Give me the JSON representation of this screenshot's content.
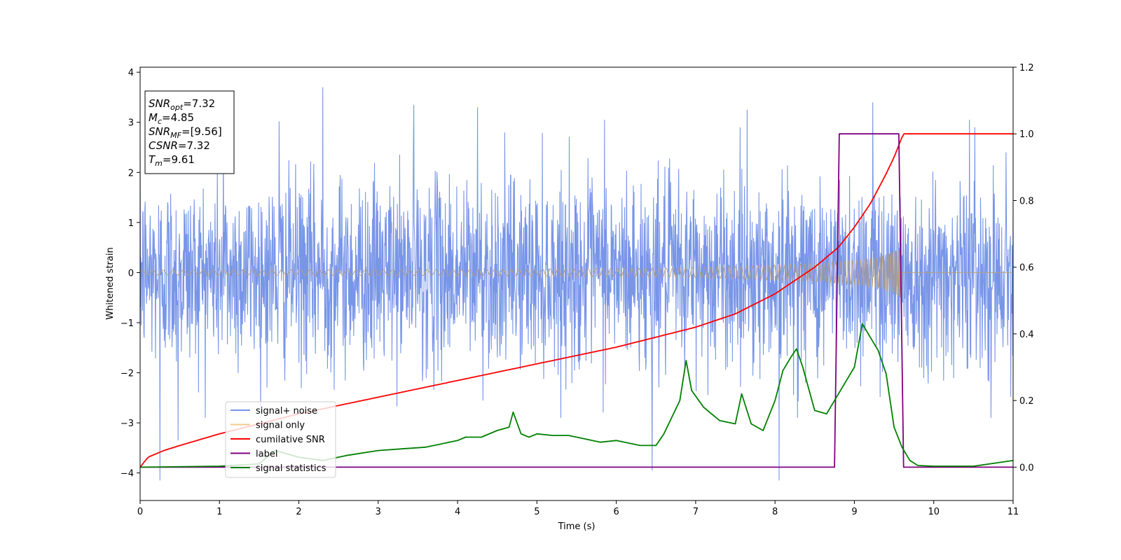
{
  "chart_data": {
    "type": "line",
    "title": "",
    "xlabel": "Time (s)",
    "ylabel": "Whitened strain",
    "xlim": [
      0,
      11
    ],
    "ylim_left": [
      -4.55,
      4.1
    ],
    "ylim_right": [
      -0.1,
      1.2
    ],
    "xticks": [
      "0",
      "1",
      "2",
      "3",
      "4",
      "5",
      "6",
      "7",
      "8",
      "9",
      "10",
      "11"
    ],
    "yticks_left": [
      "−4",
      "−3",
      "−2",
      "−1",
      "0",
      "1",
      "2",
      "3",
      "4"
    ],
    "yticks_right": [
      "0.0",
      "0.2",
      "0.4",
      "0.6",
      "0.8",
      "1.0",
      "1.2"
    ],
    "grid": false,
    "legend_position": "lower-left",
    "annotation": {
      "lines": [
        {
          "label": "SNR",
          "sub": "opt",
          "value": "=7.32"
        },
        {
          "label": "M",
          "sub": "c",
          "value": "=4.85"
        },
        {
          "label": "SNR",
          "sub": "MF",
          "value": "=[9.56]"
        },
        {
          "label": "CSNR",
          "sub": "",
          "value": "=7.32"
        },
        {
          "label": "T",
          "sub": "m",
          "value": "=9.61"
        }
      ]
    },
    "merger_time": 9.61,
    "noise_envelope": {
      "typical_amplitude": 1.5,
      "peak_range": [
        -4.15,
        3.7
      ]
    },
    "series": [
      {
        "name": "signal+ noise",
        "axis": "left",
        "color": "#7895e8",
        "kind": "noise",
        "sample_peaks": [
          {
            "x": 0.25,
            "y": -4.15
          },
          {
            "x": 0.48,
            "y": -3.35
          },
          {
            "x": 1.05,
            "y": 3.05
          },
          {
            "x": 1.75,
            "y": 3.02
          },
          {
            "x": 2.3,
            "y": 3.7
          },
          {
            "x": 3.45,
            "y": 3.35
          },
          {
            "x": 4.25,
            "y": 3.3
          },
          {
            "x": 5.85,
            "y": 3.05
          },
          {
            "x": 6.45,
            "y": -3.95
          },
          {
            "x": 7.65,
            "y": 3.25
          },
          {
            "x": 8.05,
            "y": -4.15
          },
          {
            "x": 9.23,
            "y": 3.4
          },
          {
            "x": 10.45,
            "y": 3.05
          }
        ]
      },
      {
        "name": "signal only",
        "axis": "left",
        "color": "#f5c98d",
        "kind": "chirp",
        "envelope": {
          "x": [
            0,
            2,
            4,
            6,
            7,
            8,
            8.5,
            9,
            9.3,
            9.5,
            9.6
          ],
          "amplitude": [
            0.05,
            0.055,
            0.06,
            0.08,
            0.1,
            0.15,
            0.18,
            0.24,
            0.31,
            0.42,
            0.52
          ]
        },
        "after_merger": 0.0
      },
      {
        "name": "cumilative SNR",
        "axis": "right",
        "color": "#ff0000",
        "x": [
          0,
          0.1,
          0.3,
          0.5,
          1,
          2,
          3,
          4,
          5,
          6,
          6.5,
          7,
          7.5,
          8,
          8.5,
          8.8,
          9.0,
          9.2,
          9.4,
          9.5,
          9.6,
          9.62,
          11
        ],
        "y": [
          0.0,
          0.03,
          0.05,
          0.065,
          0.1,
          0.16,
          0.21,
          0.26,
          0.31,
          0.36,
          0.39,
          0.42,
          0.46,
          0.52,
          0.6,
          0.66,
          0.72,
          0.79,
          0.88,
          0.93,
          0.99,
          1.0,
          1.0
        ]
      },
      {
        "name": "label",
        "axis": "right",
        "color": "#800080",
        "x": [
          0,
          8.75,
          8.81,
          9.56,
          9.62,
          11
        ],
        "y": [
          0,
          0,
          1,
          1,
          0,
          0
        ]
      },
      {
        "name": "signal statistics",
        "axis": "right",
        "color": "#008000",
        "x": [
          0,
          1,
          1.5,
          1.7,
          2,
          2.3,
          2.6,
          3,
          3.3,
          3.6,
          4,
          4.1,
          4.3,
          4.5,
          4.65,
          4.7,
          4.8,
          4.9,
          5,
          5.2,
          5.4,
          5.6,
          5.8,
          6,
          6.3,
          6.5,
          6.6,
          6.8,
          6.88,
          6.95,
          7.1,
          7.3,
          7.5,
          7.58,
          7.7,
          7.85,
          8.0,
          8.1,
          8.2,
          8.27,
          8.35,
          8.5,
          8.65,
          8.8,
          8.9,
          9.0,
          9.1,
          9.2,
          9.3,
          9.4,
          9.5,
          9.6,
          9.7,
          9.8,
          10,
          10.5,
          11
        ],
        "y": [
          0.0,
          0.003,
          0.01,
          0.05,
          0.03,
          0.02,
          0.035,
          0.05,
          0.055,
          0.06,
          0.08,
          0.09,
          0.09,
          0.11,
          0.12,
          0.165,
          0.1,
          0.09,
          0.1,
          0.095,
          0.095,
          0.085,
          0.075,
          0.08,
          0.065,
          0.065,
          0.1,
          0.2,
          0.32,
          0.23,
          0.18,
          0.14,
          0.13,
          0.22,
          0.13,
          0.11,
          0.2,
          0.29,
          0.33,
          0.355,
          0.3,
          0.17,
          0.16,
          0.22,
          0.26,
          0.3,
          0.43,
          0.39,
          0.35,
          0.28,
          0.12,
          0.06,
          0.02,
          0.005,
          0.003,
          0.003,
          0.02
        ]
      }
    ]
  }
}
